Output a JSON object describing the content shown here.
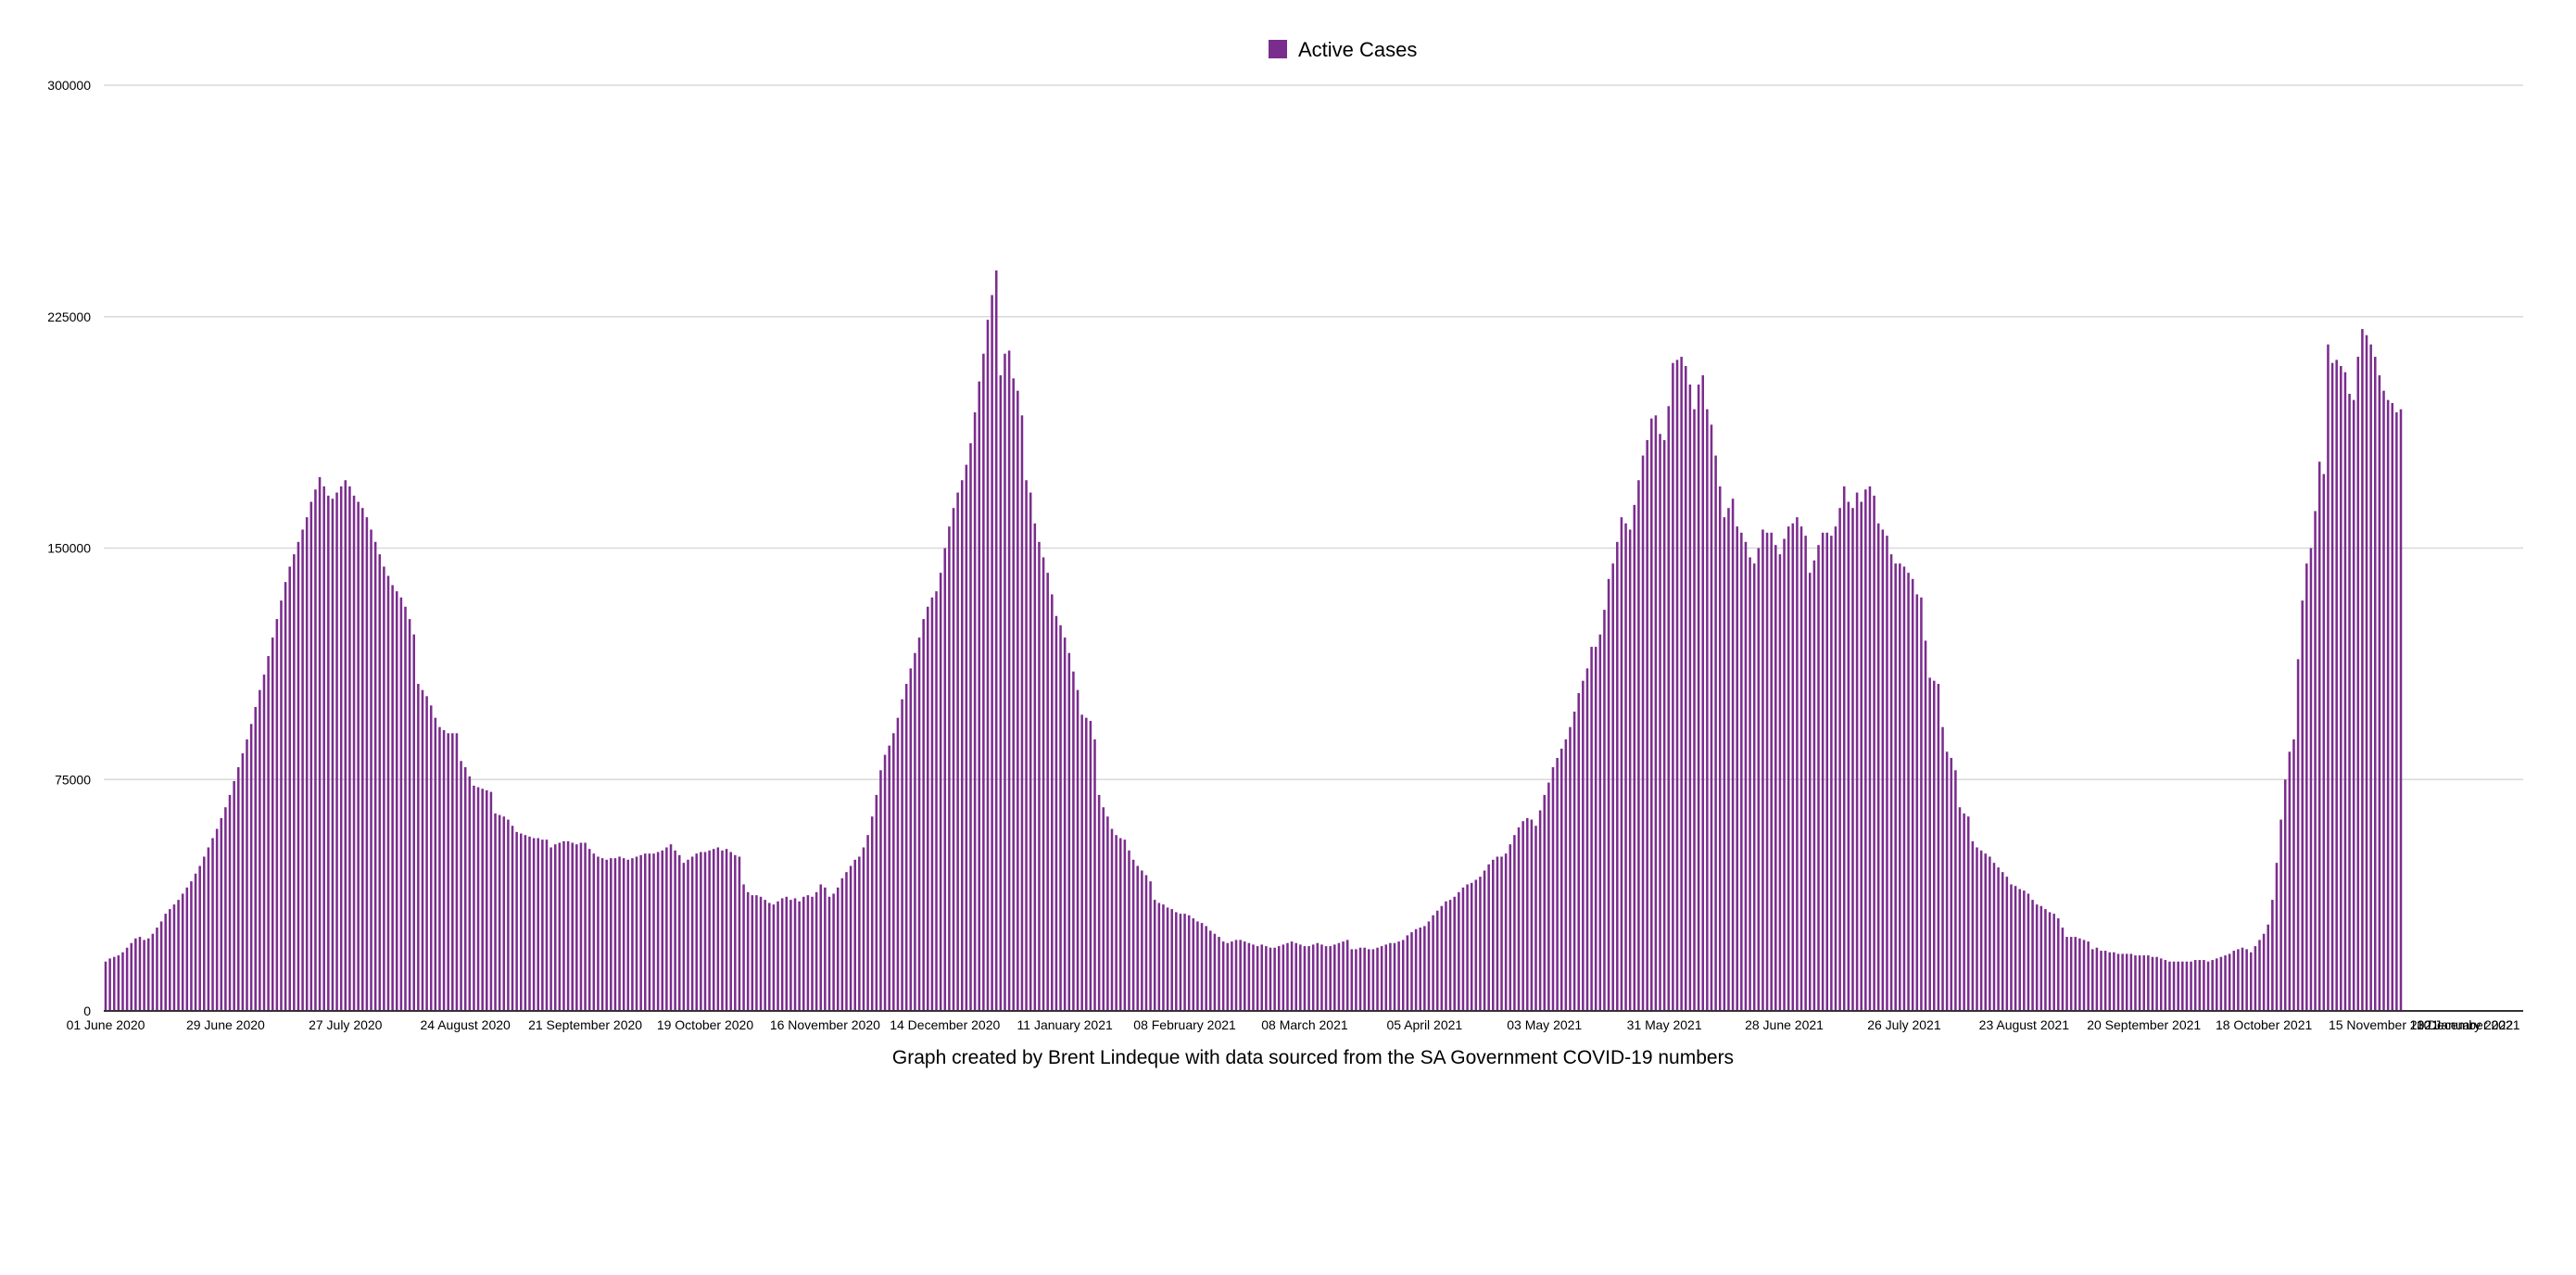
{
  "chart_data": {
    "type": "bar",
    "legend": {
      "label": "Active Cases",
      "placement": "top-center"
    },
    "series": [
      {
        "name": "Active Cases",
        "color": "#7B2D8E"
      }
    ],
    "ylim": [
      0,
      300000
    ],
    "yticks": [
      "0",
      "75000",
      "150000",
      "225000",
      "300000"
    ],
    "xticks": [
      "01 June 2020",
      "29 June 2020",
      "27 July 2020",
      "24 August 2020",
      "21 September 2020",
      "19 October 2020",
      "16 November 2020",
      "14 December 2020",
      "11 January 2021",
      "08 February 2021",
      "08 March 2021",
      "05 April 2021",
      "03 May 2021",
      "31 May 2021",
      "28 June 2021",
      "26 July 2021",
      "23 August 2021",
      "20 September 2021",
      "18 October 2021",
      "15 November 2021",
      "13 December 2021",
      "10 January 2022"
    ],
    "grid": true,
    "caption": "Graph created by Brent Lindeque with data sourced from the SA Government COVID-19 numbers",
    "values": [
      16000,
      17000,
      17500,
      18000,
      19000,
      20500,
      22000,
      23500,
      24000,
      23000,
      23500,
      25000,
      27000,
      29000,
      31500,
      33000,
      34500,
      36000,
      38000,
      40000,
      42000,
      44500,
      47000,
      50000,
      53000,
      56000,
      59000,
      62500,
      66000,
      70000,
      74500,
      79000,
      83500,
      88000,
      93000,
      98500,
      104000,
      109000,
      115000,
      121000,
      127000,
      133000,
      139000,
      144000,
      148000,
      152000,
      156000,
      160000,
      165000,
      169000,
      173000,
      170000,
      167000,
      166000,
      168000,
      170000,
      172000,
      170000,
      167000,
      165000,
      163000,
      160000,
      156000,
      152000,
      148000,
      144000,
      141000,
      138000,
      136000,
      134000,
      131000,
      127000,
      122000,
      106000,
      104000,
      102000,
      99000,
      95000,
      92000,
      91000,
      90000,
      90000,
      90000,
      81000,
      79000,
      76000,
      73000,
      72500,
      72000,
      71500,
      71000,
      64000,
      63500,
      63000,
      62000,
      60000,
      58000,
      57500,
      57000,
      56500,
      56000,
      56000,
      55500,
      55500,
      53000,
      54000,
      54500,
      55000,
      55000,
      54500,
      54000,
      54500,
      54500,
      52500,
      51000,
      50000,
      49500,
      49000,
      49500,
      49500,
      50000,
      49500,
      49000,
      49500,
      50000,
      50500,
      51000,
      51000,
      51000,
      51500,
      52000,
      53000,
      54000,
      52000,
      50500,
      48000,
      49000,
      50000,
      51000,
      51500,
      51500,
      52000,
      52500,
      53000,
      52000,
      52500,
      51500,
      50500,
      50000,
      41000,
      38500,
      37500,
      37500,
      37000,
      36000,
      35000,
      34500,
      35500,
      36500,
      37000,
      36000,
      36500,
      35500,
      37000,
      37500,
      37000,
      38500,
      41000,
      40000,
      37000,
      38000,
      40000,
      43000,
      45000,
      47000,
      49000,
      50000,
      53000,
      57000,
      63000,
      70000,
      78000,
      83000,
      86000,
      90000,
      95000,
      101000,
      106000,
      111000,
      116000,
      121000,
      127000,
      131000,
      134000,
      136000,
      142000,
      150000,
      157000,
      163000,
      168000,
      172000,
      177000,
      184000,
      194000,
      204000,
      213000,
      224000,
      232000,
      240000,
      206000,
      213000,
      214000,
      205000,
      201000,
      193000,
      172000,
      168000,
      158000,
      152000,
      147000,
      142000,
      135000,
      128000,
      125000,
      121000,
      116000,
      110000,
      104000,
      96000,
      95000,
      94000,
      88000,
      70000,
      66000,
      63000,
      59000,
      57000,
      56000,
      55500,
      52000,
      49000,
      47000,
      45500,
      44000,
      42000,
      36000,
      35000,
      34500,
      33500,
      33000,
      32000,
      31500,
      31500,
      31000,
      30000,
      29000,
      28500,
      27500,
      26000,
      25000,
      24000,
      22500,
      22000,
      22500,
      23000,
      23000,
      22500,
      22000,
      21500,
      21000,
      21500,
      21000,
      20500,
      20500,
      21000,
      21500,
      22000,
      22500,
      22000,
      21500,
      21000,
      21000,
      21500,
      22000,
      21500,
      21000,
      21000,
      21500,
      22000,
      22500,
      23000,
      20000,
      20000,
      20500,
      20500,
      20000,
      20000,
      20500,
      21000,
      21500,
      22000,
      22000,
      22500,
      23000,
      24500,
      25500,
      26500,
      27000,
      27500,
      29000,
      31000,
      32500,
      34000,
      35500,
      36000,
      37000,
      38500,
      40000,
      41000,
      41500,
      42500,
      43500,
      45500,
      47500,
      49000,
      50000,
      50000,
      51000,
      54000,
      57000,
      59500,
      61500,
      62500,
      62000,
      60000,
      65000,
      70000,
      74000,
      79000,
      82000,
      85000,
      88000,
      92000,
      97000,
      103000,
      107000,
      111000,
      118000,
      118000,
      122000,
      130000,
      140000,
      145000,
      152000,
      160000,
      158000,
      156000,
      164000,
      172000,
      180000,
      185000,
      192000,
      193000,
      187000,
      185000,
      196000,
      210000,
      211000,
      212000,
      209000,
      203000,
      195000,
      203000,
      206000,
      195000,
      190000,
      180000,
      170000,
      160000,
      163000,
      166000,
      157000,
      155000,
      152000,
      147000,
      145000,
      150000,
      156000,
      155000,
      155000,
      151000,
      148000,
      153000,
      157000,
      158000,
      160000,
      157000,
      154000,
      142000,
      146000,
      151000,
      155000,
      155000,
      154000,
      157000,
      163000,
      170000,
      165000,
      163000,
      168000,
      165000,
      169000,
      170000,
      167000,
      158000,
      156000,
      154000,
      148000,
      145000,
      145000,
      144000,
      142000,
      140000,
      135000,
      134000,
      120000,
      108000,
      107000,
      106000,
      92000,
      84000,
      82000,
      78000,
      66000,
      64000,
      63000,
      55000,
      53000,
      52000,
      51000,
      50000,
      48000,
      46500,
      45000,
      43500,
      41000,
      40500,
      39500,
      39000,
      38000,
      36000,
      34500,
      34000,
      33000,
      32000,
      31500,
      30000,
      27000,
      24000,
      24000,
      24000,
      23500,
      23000,
      22500,
      20000,
      20500,
      19500,
      19500,
      19000,
      19000,
      18500,
      18500,
      18500,
      18500,
      18000,
      18000,
      18000,
      18000,
      17500,
      17500,
      17000,
      16500,
      16000,
      16000,
      16000,
      16000,
      16000,
      16000,
      16500,
      16500,
      16500,
      16000,
      16500,
      17000,
      17500,
      18000,
      18500,
      19500,
      20000,
      20500,
      20000,
      19000,
      21000,
      23000,
      25000,
      28000,
      36000,
      48000,
      62000,
      75000,
      84000,
      88000,
      114000,
      133000,
      145000,
      150000,
      162000,
      178000,
      174000,
      216000,
      210000,
      211000,
      209000,
      207000,
      200000,
      198000,
      212000,
      221000,
      219000,
      216000,
      212000,
      206000,
      201000,
      198000,
      197000,
      194000,
      195000
    ]
  }
}
